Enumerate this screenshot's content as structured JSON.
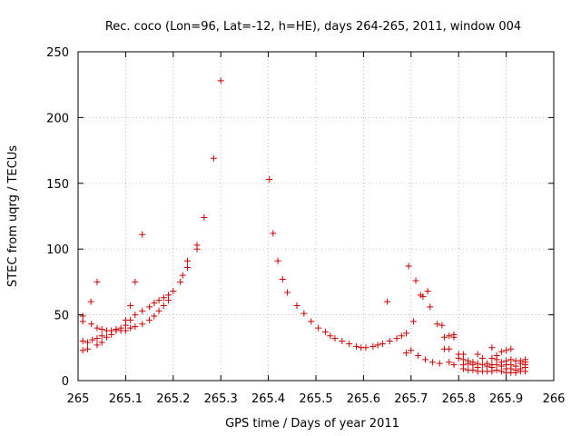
{
  "chart_data": {
    "type": "scatter",
    "title": "Rec. coco (Lon=96, Lat=-12, h=HE), days 264-265, 2011, window 004",
    "xlabel": "GPS time / Days of year 2011",
    "ylabel": "STEC from uqrg / TECUs",
    "xlim": [
      265,
      266
    ],
    "ylim": [
      0,
      250
    ],
    "xticks": [
      "265",
      "265.1",
      "265.2",
      "265.3",
      "265.4",
      "265.5",
      "265.6",
      "265.7",
      "265.8",
      "265.9",
      "266"
    ],
    "yticks": [
      "0",
      "50",
      "100",
      "150",
      "200",
      "250"
    ],
    "grid": true,
    "marker": "plus",
    "color": "#cc0000",
    "points": [
      [
        265.01,
        49
      ],
      [
        265.01,
        45
      ],
      [
        265.01,
        30
      ],
      [
        265.01,
        23
      ],
      [
        265.02,
        29
      ],
      [
        265.02,
        24
      ],
      [
        265.027,
        60
      ],
      [
        265.028,
        43
      ],
      [
        265.03,
        31
      ],
      [
        265.04,
        75
      ],
      [
        265.04,
        40
      ],
      [
        265.04,
        32
      ],
      [
        265.04,
        27
      ],
      [
        265.05,
        39
      ],
      [
        265.05,
        34
      ],
      [
        265.05,
        29
      ],
      [
        265.06,
        38
      ],
      [
        265.06,
        33
      ],
      [
        265.07,
        38
      ],
      [
        265.07,
        35
      ],
      [
        265.08,
        39
      ],
      [
        265.08,
        38
      ],
      [
        265.09,
        40
      ],
      [
        265.09,
        38
      ],
      [
        265.1,
        46
      ],
      [
        265.1,
        42
      ],
      [
        265.1,
        38
      ],
      [
        265.11,
        57
      ],
      [
        265.11,
        46
      ],
      [
        265.11,
        40
      ],
      [
        265.12,
        75
      ],
      [
        265.12,
        50
      ],
      [
        265.12,
        41
      ],
      [
        265.135,
        111
      ],
      [
        265.135,
        53
      ],
      [
        265.135,
        43
      ],
      [
        265.15,
        56
      ],
      [
        265.15,
        46
      ],
      [
        265.16,
        59
      ],
      [
        265.16,
        49
      ],
      [
        265.17,
        61
      ],
      [
        265.17,
        53
      ],
      [
        265.18,
        63
      ],
      [
        265.18,
        57
      ],
      [
        265.19,
        65
      ],
      [
        265.19,
        61
      ],
      [
        265.2,
        68
      ],
      [
        265.215,
        75
      ],
      [
        265.22,
        80
      ],
      [
        265.23,
        86
      ],
      [
        265.23,
        91
      ],
      [
        265.25,
        100
      ],
      [
        265.25,
        103
      ],
      [
        265.265,
        124
      ],
      [
        265.285,
        169
      ],
      [
        265.3,
        228
      ],
      [
        265.402,
        153
      ],
      [
        265.41,
        112
      ],
      [
        265.42,
        91
      ],
      [
        265.43,
        77
      ],
      [
        265.44,
        67
      ],
      [
        265.46,
        57
      ],
      [
        265.475,
        51
      ],
      [
        265.49,
        45
      ],
      [
        265.505,
        40
      ],
      [
        265.52,
        37
      ],
      [
        265.53,
        34
      ],
      [
        265.54,
        32
      ],
      [
        265.555,
        30
      ],
      [
        265.57,
        28
      ],
      [
        265.585,
        26
      ],
      [
        265.595,
        25
      ],
      [
        265.605,
        25
      ],
      [
        265.62,
        26
      ],
      [
        265.63,
        27
      ],
      [
        265.64,
        28
      ],
      [
        265.65,
        60
      ],
      [
        265.655,
        30
      ],
      [
        265.67,
        32
      ],
      [
        265.68,
        34
      ],
      [
        265.69,
        21
      ],
      [
        265.69,
        36
      ],
      [
        265.695,
        87
      ],
      [
        265.7,
        23
      ],
      [
        265.705,
        45
      ],
      [
        265.71,
        76
      ],
      [
        265.715,
        19
      ],
      [
        265.72,
        65
      ],
      [
        265.725,
        64
      ],
      [
        265.73,
        16
      ],
      [
        265.735,
        68
      ],
      [
        265.74,
        56
      ],
      [
        265.745,
        14
      ],
      [
        265.755,
        43
      ],
      [
        265.76,
        13
      ],
      [
        265.765,
        42
      ],
      [
        265.77,
        33
      ],
      [
        265.77,
        24
      ],
      [
        265.78,
        34
      ],
      [
        265.78,
        24
      ],
      [
        265.78,
        14
      ],
      [
        265.79,
        35
      ],
      [
        265.79,
        33
      ],
      [
        265.79,
        12
      ],
      [
        265.8,
        20
      ],
      [
        265.8,
        17
      ],
      [
        265.81,
        20
      ],
      [
        265.81,
        16
      ],
      [
        265.81,
        12
      ],
      [
        265.81,
        9
      ],
      [
        265.82,
        15
      ],
      [
        265.82,
        13
      ],
      [
        265.82,
        8
      ],
      [
        265.83,
        14
      ],
      [
        265.83,
        12
      ],
      [
        265.83,
        8
      ],
      [
        265.84,
        20
      ],
      [
        265.84,
        13
      ],
      [
        265.84,
        10
      ],
      [
        265.84,
        7
      ],
      [
        265.85,
        17
      ],
      [
        265.85,
        12
      ],
      [
        265.85,
        7
      ],
      [
        265.86,
        13
      ],
      [
        265.86,
        11
      ],
      [
        265.86,
        7
      ],
      [
        265.87,
        25
      ],
      [
        265.87,
        17
      ],
      [
        265.87,
        12
      ],
      [
        265.87,
        10
      ],
      [
        265.87,
        7
      ],
      [
        265.88,
        19
      ],
      [
        265.88,
        16
      ],
      [
        265.88,
        12
      ],
      [
        265.88,
        8
      ],
      [
        265.89,
        22
      ],
      [
        265.89,
        14
      ],
      [
        265.89,
        11
      ],
      [
        265.89,
        7
      ],
      [
        265.9,
        23
      ],
      [
        265.9,
        15
      ],
      [
        265.9,
        12
      ],
      [
        265.9,
        9
      ],
      [
        265.9,
        6
      ],
      [
        265.91,
        24
      ],
      [
        265.91,
        16
      ],
      [
        265.91,
        12
      ],
      [
        265.91,
        9
      ],
      [
        265.91,
        6
      ],
      [
        265.92,
        15
      ],
      [
        265.92,
        11
      ],
      [
        265.92,
        8
      ],
      [
        265.92,
        6
      ],
      [
        265.93,
        15
      ],
      [
        265.93,
        13
      ],
      [
        265.93,
        9
      ],
      [
        265.93,
        7
      ],
      [
        265.94,
        16
      ],
      [
        265.94,
        14
      ],
      [
        265.94,
        12
      ],
      [
        265.94,
        10
      ],
      [
        265.94,
        7
      ]
    ]
  }
}
